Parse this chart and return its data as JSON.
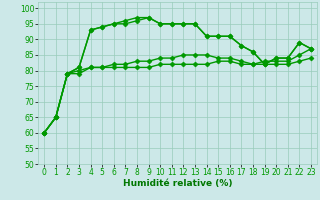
{
  "background_color": "#cce8e8",
  "grid_color": "#99ccbb",
  "line_color": "#009900",
  "marker": "D",
  "markersize": 2.5,
  "linewidth": 1.0,
  "xlabel": "Humidité relative (%)",
  "xlabel_fontsize": 6.5,
  "xlabel_color": "#007700",
  "tick_fontsize": 5.5,
  "ylim": [
    50,
    102
  ],
  "xlim": [
    -0.5,
    23.5
  ],
  "yticks": [
    50,
    55,
    60,
    65,
    70,
    75,
    80,
    85,
    90,
    95,
    100
  ],
  "xticks": [
    0,
    1,
    2,
    3,
    4,
    5,
    6,
    7,
    8,
    9,
    10,
    11,
    12,
    13,
    14,
    15,
    16,
    17,
    18,
    19,
    20,
    21,
    22,
    23
  ],
  "series": [
    [
      60,
      65,
      79,
      79,
      81,
      81,
      81,
      81,
      81,
      81,
      82,
      82,
      82,
      82,
      82,
      83,
      83,
      82,
      82,
      82,
      82,
      82,
      83,
      84
    ],
    [
      60,
      65,
      79,
      80,
      81,
      81,
      82,
      82,
      83,
      83,
      84,
      84,
      85,
      85,
      85,
      84,
      84,
      83,
      82,
      83,
      83,
      83,
      85,
      87
    ],
    [
      60,
      65,
      79,
      81,
      93,
      94,
      95,
      96,
      97,
      97,
      95,
      95,
      95,
      95,
      91,
      91,
      91,
      88,
      86,
      82,
      84,
      84,
      89,
      87
    ],
    [
      60,
      65,
      79,
      81,
      93,
      94,
      95,
      95,
      96,
      97,
      95,
      95,
      95,
      95,
      91,
      91,
      91,
      88,
      86,
      82,
      84,
      84,
      89,
      87
    ]
  ]
}
